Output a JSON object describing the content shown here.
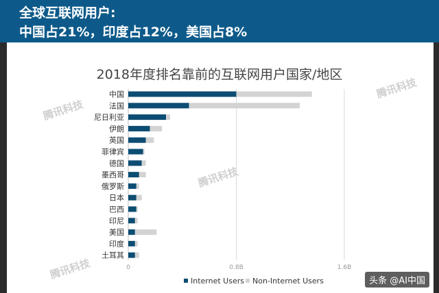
{
  "banner": {
    "line1": "全球互联网用户:",
    "line2": "中国占21%，印度占12%，美国占8%"
  },
  "watermarks": [
    "腾讯科技",
    "腾讯科技",
    "腾讯科技",
    "腾讯科技"
  ],
  "footer_text": "头条 @AI中国",
  "colors": {
    "banner": "#0d5a8a",
    "internet_users": "#0d4d73",
    "non_internet_users": "#d3d3d3"
  },
  "chart_data": {
    "type": "bar",
    "orientation": "horizontal",
    "stacked": true,
    "title": "2018年度排名靠前的互联网用户国家/地区",
    "categories": [
      "中国",
      "法国",
      "尼日利亚",
      "伊朗",
      "英国",
      "菲律宾",
      "德国",
      "墨西哥",
      "俄罗斯",
      "日本",
      "巴西",
      "印尼",
      "美国",
      "印度",
      "土耳其"
    ],
    "series": [
      {
        "name": "Internet Users",
        "values": [
          0.8,
          0.45,
          0.28,
          0.16,
          0.13,
          0.11,
          0.1,
          0.08,
          0.06,
          0.06,
          0.06,
          0.05,
          0.05,
          0.05,
          0.05
        ]
      },
      {
        "name": "Non-Internet Users",
        "values": [
          0.56,
          0.82,
          0.03,
          0.09,
          0.06,
          0.01,
          0.03,
          0.05,
          0.02,
          0.04,
          0.01,
          0.02,
          0.16,
          0.02,
          0.03
        ]
      }
    ],
    "xticks": [
      "0",
      "0.8B",
      "1.6B"
    ],
    "xlim": [
      0,
      1.6
    ],
    "grid": true,
    "legend_position": "bottom"
  }
}
